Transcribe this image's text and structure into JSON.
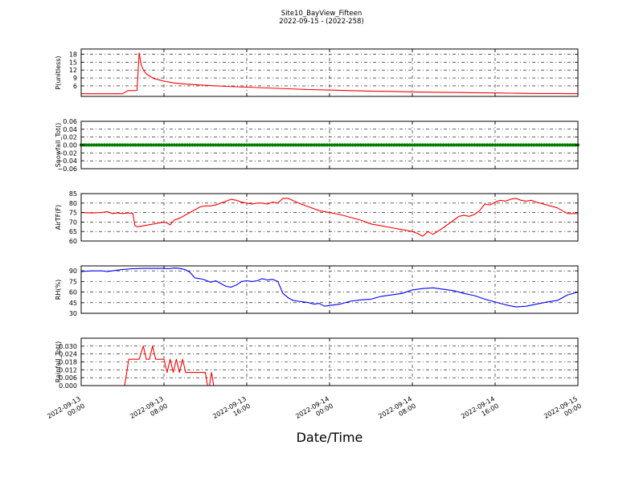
{
  "figure": {
    "title_line1": "Site10_BayView_Fifteen",
    "title_line2": "2022-09-15 - (2022-258)",
    "xlabel": "Date/Time"
  },
  "x_axis": {
    "range_hours": [
      0,
      48
    ],
    "ticks": [
      {
        "h": 0,
        "line1": "2022-09-13",
        "line2": "00:00"
      },
      {
        "h": 8,
        "line1": "2022-09-13",
        "line2": "08:00"
      },
      {
        "h": 16,
        "line1": "2022-09-13",
        "line2": "16:00"
      },
      {
        "h": 24,
        "line1": "2022-09-14",
        "line2": "00:00"
      },
      {
        "h": 32,
        "line1": "2022-09-14",
        "line2": "08:00"
      },
      {
        "h": 40,
        "line1": "2022-09-14",
        "line2": "16:00"
      },
      {
        "h": 48,
        "line1": "2022-09-15",
        "line2": "00:00"
      }
    ]
  },
  "chart_data": [
    {
      "type": "line",
      "ylabel": "P(unitless)",
      "ylim": [
        2,
        20
      ],
      "yticks": [
        6,
        9,
        12,
        15,
        18
      ],
      "ytick_labels": [
        "6",
        "9",
        "12",
        "15",
        "18"
      ],
      "grid": true,
      "color": "#ff0000",
      "x_hours": [
        0,
        4,
        4.5,
        5,
        5.4,
        5.6,
        5.8,
        6,
        6.3,
        6.7,
        7,
        7.5,
        8,
        9,
        10,
        12,
        14,
        16,
        18,
        20,
        22,
        24,
        26,
        28,
        30,
        32,
        34,
        36,
        38,
        40,
        42,
        44,
        46,
        48
      ],
      "y": [
        3.0,
        3.0,
        4.2,
        4.2,
        4.3,
        18.5,
        14,
        12,
        10.5,
        9.5,
        8.8,
        8.3,
        7.8,
        7.1,
        6.7,
        6.2,
        5.8,
        5.5,
        5.2,
        4.9,
        4.6,
        4.4,
        4.2,
        4.0,
        3.9,
        3.7,
        3.6,
        3.5,
        3.4,
        3.3,
        3.2,
        3.1,
        3.1,
        3.0
      ]
    },
    {
      "type": "scatter",
      "ylabel": "Snowfall_Tot()",
      "ylim": [
        -0.06,
        0.06
      ],
      "yticks": [
        -0.06,
        -0.04,
        -0.02,
        0.0,
        0.02,
        0.04,
        0.06
      ],
      "ytick_labels": [
        "−0.06",
        "−0.04",
        "−0.02",
        "0.00",
        "0.02",
        "0.04",
        "0.06"
      ],
      "grid": true,
      "color": "#008000",
      "x_start_hours": 0,
      "x_end_hours": 48,
      "x_step_hours": 0.25,
      "constant_value": 0.0
    },
    {
      "type": "line",
      "ylabel": "AirTF(F)",
      "ylim": [
        60,
        85
      ],
      "yticks": [
        60,
        65,
        70,
        75,
        80,
        85
      ],
      "ytick_labels": [
        "60",
        "65",
        "70",
        "75",
        "80",
        "85"
      ],
      "grid": true,
      "color": "#ff0000",
      "x_hours": [
        0,
        1,
        2,
        2.5,
        3,
        3.5,
        4,
        4.5,
        5,
        5.2,
        5.5,
        6,
        6.5,
        7,
        7.5,
        8,
        8.3,
        8.6,
        9,
        9.5,
        10,
        10.5,
        11,
        11.5,
        12,
        12.5,
        13,
        13.5,
        14,
        14.5,
        15,
        15.5,
        16,
        16.5,
        17,
        17.5,
        18,
        18.5,
        19,
        19.5,
        20,
        21,
        22,
        23,
        24,
        25,
        26,
        27,
        28,
        29,
        30,
        31,
        32,
        32.5,
        33,
        33.5,
        34,
        35,
        36,
        36.5,
        37,
        37.5,
        38,
        38.5,
        39,
        39.5,
        40,
        40.5,
        41,
        41.5,
        42,
        42.5,
        43,
        43.5,
        44,
        45,
        46,
        47,
        48
      ],
      "y": [
        75,
        74.8,
        75,
        75.5,
        74.5,
        74.8,
        74.5,
        74.8,
        74.5,
        68,
        67.5,
        68,
        68.5,
        69,
        69.5,
        70,
        69.5,
        68.5,
        71,
        72,
        73.5,
        75,
        76.5,
        78,
        78.5,
        78.5,
        79,
        80,
        81,
        82,
        81.5,
        80.5,
        80,
        79.5,
        80,
        80,
        79.5,
        80.5,
        80,
        82.5,
        82.5,
        80,
        78,
        76,
        75,
        74,
        72.5,
        71,
        69,
        68,
        67,
        66,
        65,
        64,
        62.5,
        65,
        63.5,
        67,
        71,
        73,
        73.5,
        73,
        74,
        76,
        79.5,
        79,
        80.5,
        81.5,
        81,
        82,
        82.5,
        81.5,
        81,
        81.5,
        80.5,
        79,
        77.5,
        74.5,
        74.5
      ]
    },
    {
      "type": "line",
      "ylabel": "RH(%)",
      "ylim": [
        30,
        97
      ],
      "yticks": [
        30,
        45,
        60,
        75,
        90
      ],
      "ytick_labels": [
        "30",
        "45",
        "60",
        "75",
        "90"
      ],
      "grid": true,
      "color": "#0000ff",
      "x_hours": [
        0,
        1,
        2,
        2.5,
        3,
        4,
        5,
        6,
        7,
        8,
        8.5,
        9,
        9.5,
        10,
        10.5,
        11,
        11.5,
        12,
        12.5,
        13,
        13.5,
        14,
        14.5,
        15,
        15.5,
        16,
        16.5,
        17,
        17.5,
        18,
        18.5,
        19,
        19.5,
        20,
        20.5,
        21,
        22,
        22.5,
        23,
        23.5,
        24,
        25,
        26,
        27,
        28,
        29,
        30,
        31,
        32,
        33,
        34,
        35,
        36,
        37,
        38,
        39,
        40,
        41,
        42,
        43,
        44,
        45,
        46,
        47,
        48
      ],
      "y": [
        89,
        90,
        90,
        89,
        90,
        92,
        93,
        93.5,
        93.5,
        93.5,
        93,
        94,
        93.5,
        92,
        88,
        80,
        79,
        77,
        74,
        76,
        72,
        68,
        67,
        70,
        75,
        76,
        75,
        76,
        79,
        77,
        78,
        75,
        58,
        52,
        48,
        47,
        45,
        43,
        44,
        40,
        41,
        43,
        47,
        49,
        50,
        54,
        56,
        58,
        63,
        65,
        66,
        64,
        62,
        58,
        55,
        50,
        46,
        42,
        39,
        40,
        43,
        46,
        48,
        56,
        60
      ]
    },
    {
      "type": "line",
      "ylabel": "Rainfall_Tot()",
      "ylim": [
        0,
        0.036
      ],
      "yticks": [
        0.0,
        0.006,
        0.012,
        0.018,
        0.024,
        0.03
      ],
      "ytick_labels": [
        "0.000",
        "0.006",
        "0.012",
        "0.018",
        "0.024",
        "0.030"
      ],
      "grid": true,
      "color": "#ff0000",
      "x_hours": [
        0,
        4.2,
        4.6,
        5.6,
        6.0,
        6.3,
        6.6,
        6.9,
        7.2,
        8.0,
        8.3,
        8.6,
        8.9,
        9.2,
        9.5,
        9.8,
        10.1,
        10.5,
        10.8,
        11.5,
        12.0,
        12.2,
        12.4,
        12.6,
        12.8,
        13.2,
        48
      ],
      "y": [
        0,
        0,
        0.02,
        0.02,
        0.03,
        0.02,
        0.02,
        0.03,
        0.02,
        0.02,
        0.01,
        0.02,
        0.01,
        0.02,
        0.01,
        0.02,
        0.01,
        0.01,
        0.01,
        0.01,
        0.01,
        0.0,
        0.0,
        0.01,
        0.0,
        0.0,
        0
      ]
    }
  ]
}
